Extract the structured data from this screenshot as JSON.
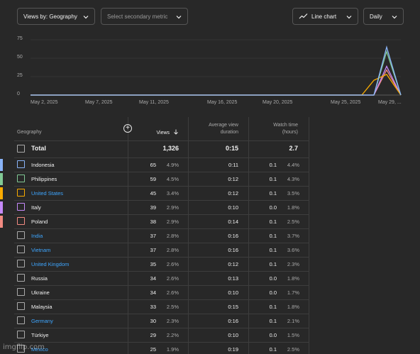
{
  "toolbar": {
    "primary_metric": "Views by: Geography",
    "secondary_metric_placeholder": "Select secondary metric",
    "chart_type": "Line chart",
    "period": "Daily"
  },
  "chart_data": {
    "type": "line",
    "y_ticks": [
      "75",
      "50",
      "25",
      "0"
    ],
    "x_ticks": [
      "May 2, 2025",
      "May 7, 2025",
      "May 11, 2025",
      "May 16, 2025",
      "May 20, 2025",
      "May 25, 2025",
      "May 29, ..."
    ],
    "ylim": [
      0,
      75
    ],
    "series": [
      {
        "name": "Indonesia",
        "color": "#8ab4f8",
        "values": [
          0,
          0,
          65,
          0
        ]
      },
      {
        "name": "Philippines",
        "color": "#81c995",
        "values": [
          0,
          0,
          59,
          0
        ]
      },
      {
        "name": "United States",
        "color": "#f9ab00",
        "values": [
          0,
          20,
          28,
          0
        ]
      },
      {
        "name": "Italy",
        "color": "#c58af9",
        "values": [
          0,
          0,
          39,
          0
        ]
      },
      {
        "name": "Poland",
        "color": "#f28b82",
        "values": [
          0,
          0,
          34,
          0
        ]
      }
    ]
  },
  "table": {
    "columns": {
      "geography": "Geography",
      "views": "Views",
      "avg_line1": "Average view",
      "avg_line2": "duration",
      "watch_line1": "Watch time",
      "watch_line2": "(hours)"
    },
    "total": {
      "label": "Total",
      "views": "1,326",
      "avg": "0:15",
      "watch": "2.7"
    },
    "rows": [
      {
        "name": "Indonesia",
        "link": false,
        "color": "#8ab4f8",
        "views": "65",
        "pct": "4.9%",
        "avg": "0:11",
        "watch": "0.1",
        "wpct": "4.4%"
      },
      {
        "name": "Philippines",
        "link": false,
        "color": "#81c995",
        "views": "59",
        "pct": "4.5%",
        "avg": "0:12",
        "watch": "0.1",
        "wpct": "4.3%"
      },
      {
        "name": "United States",
        "link": true,
        "color": "#f9ab00",
        "views": "45",
        "pct": "3.4%",
        "avg": "0:12",
        "watch": "0.1",
        "wpct": "3.5%"
      },
      {
        "name": "Italy",
        "link": false,
        "color": "#c58af9",
        "views": "39",
        "pct": "2.9%",
        "avg": "0:10",
        "watch": "0.0",
        "wpct": "1.8%"
      },
      {
        "name": "Poland",
        "link": false,
        "color": "#f28b82",
        "views": "38",
        "pct": "2.9%",
        "avg": "0:14",
        "watch": "0.1",
        "wpct": "2.5%"
      },
      {
        "name": "India",
        "link": true,
        "color": "",
        "views": "37",
        "pct": "2.8%",
        "avg": "0:16",
        "watch": "0.1",
        "wpct": "3.7%"
      },
      {
        "name": "Vietnam",
        "link": true,
        "color": "",
        "views": "37",
        "pct": "2.8%",
        "avg": "0:16",
        "watch": "0.1",
        "wpct": "3.6%"
      },
      {
        "name": "United Kingdom",
        "link": true,
        "color": "",
        "views": "35",
        "pct": "2.6%",
        "avg": "0:12",
        "watch": "0.1",
        "wpct": "2.3%"
      },
      {
        "name": "Russia",
        "link": false,
        "color": "",
        "views": "34",
        "pct": "2.6%",
        "avg": "0:13",
        "watch": "0.0",
        "wpct": "1.8%"
      },
      {
        "name": "Ukraine",
        "link": false,
        "color": "",
        "views": "34",
        "pct": "2.6%",
        "avg": "0:10",
        "watch": "0.0",
        "wpct": "1.7%"
      },
      {
        "name": "Malaysia",
        "link": false,
        "color": "",
        "views": "33",
        "pct": "2.5%",
        "avg": "0:15",
        "watch": "0.1",
        "wpct": "1.8%"
      },
      {
        "name": "Germany",
        "link": true,
        "color": "",
        "views": "30",
        "pct": "2.3%",
        "avg": "0:16",
        "watch": "0.1",
        "wpct": "2.1%"
      },
      {
        "name": "Türkiye",
        "link": false,
        "color": "",
        "views": "29",
        "pct": "2.2%",
        "avg": "0:10",
        "watch": "0.0",
        "wpct": "1.5%"
      },
      {
        "name": "Mexico",
        "link": true,
        "color": "",
        "views": "25",
        "pct": "1.9%",
        "avg": "0:19",
        "watch": "0.1",
        "wpct": "2.5%"
      }
    ]
  },
  "watermark": "imgflip.com"
}
